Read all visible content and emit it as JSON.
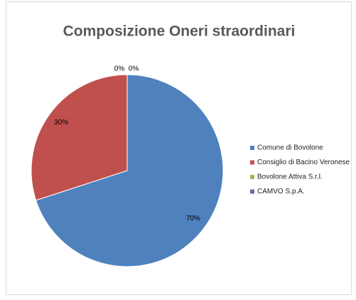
{
  "chart_data": {
    "type": "pie",
    "title": "Composizione Oneri straordinari",
    "categories": [
      "Comune di Bovolone",
      "Consiglio di Bacino Veronese",
      "Bovolone Attiva S.r.l.",
      "CAMVO S.p.A."
    ],
    "values": [
      70,
      30,
      0,
      0
    ],
    "value_labels": [
      "70%",
      "30%",
      "0%",
      "0%"
    ],
    "colors": [
      "#4f81bd",
      "#c0504d",
      "#9bbb59",
      "#8064a2"
    ],
    "legend": "right"
  }
}
